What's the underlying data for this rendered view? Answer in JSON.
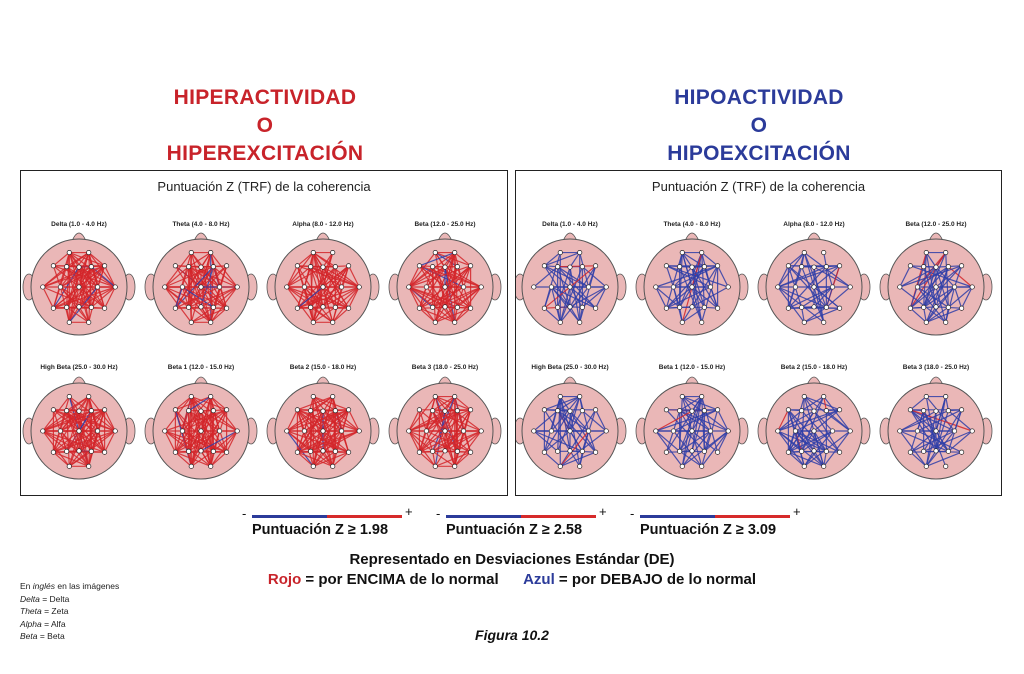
{
  "headings": {
    "left": [
      "HIPERACTIVIDAD",
      "O",
      "HIPEREXCITACIÓN"
    ],
    "right": [
      "HIPOACTIVIDAD",
      "O",
      "HIPOEXCITACIÓN"
    ]
  },
  "colors": {
    "red": "#c8232a",
    "blue": "#2b3b9a",
    "head": "#eab7b7",
    "line_red": "#d4262a",
    "line_blue": "#2f3ea8"
  },
  "panels": [
    {
      "id": "left",
      "title": "Puntuación Z (TRF) de la coherencia",
      "line_color": "red",
      "maps": [
        "Delta (1.0 - 4.0 Hz)",
        "Theta (4.0 - 8.0 Hz)",
        "Alpha (8.0 - 12.0 Hz)",
        "Beta (12.0 - 25.0 Hz)",
        "High Beta (25.0 - 30.0 Hz)",
        "Beta 1 (12.0 - 15.0 Hz)",
        "Beta 2 (15.0 - 18.0 Hz)",
        "Beta 3 (18.0 - 25.0 Hz)"
      ]
    },
    {
      "id": "right",
      "title": "Puntuación Z (TRF) de la coherencia",
      "line_color": "blue",
      "maps": [
        "Delta (1.0 - 4.0 Hz)",
        "Theta (4.0 - 8.0 Hz)",
        "Alpha (8.0 - 12.0 Hz)",
        "Beta (12.0 - 25.0 Hz)",
        "High Beta (25.0 - 30.0 Hz)",
        "Beta 1 (12.0 - 15.0 Hz)",
        "Beta 2 (15.0 - 18.0 Hz)",
        "Beta 3 (18.0 - 25.0 Hz)"
      ]
    }
  ],
  "scales": [
    {
      "minus": "-",
      "plus": "+",
      "label": "Puntuación Z ≥ 1.98"
    },
    {
      "minus": "-",
      "plus": "+",
      "label": "Puntuación Z ≥ 2.58"
    },
    {
      "minus": "-",
      "plus": "+",
      "label": "Puntuación Z ≥ 3.09"
    }
  ],
  "caption": "Representado en Desviaciones Estándar (DE)",
  "legend": {
    "red_word": "Rojo",
    "red_text": " = por ENCIMA de lo normal",
    "blue_word": "Azul",
    "blue_text": " = por DEBAJO de lo normal"
  },
  "glossary": {
    "intro_pre": "En ",
    "intro_em": "inglés",
    "intro_post": " en las imágenes",
    "items": [
      {
        "en": "Delta",
        "es": " = Delta"
      },
      {
        "en": "Theta",
        "es": " = Zeta"
      },
      {
        "en": "Alpha",
        "es": " = Alfa"
      },
      {
        "en": "Beta",
        "es": " = Beta"
      }
    ]
  },
  "figure": "Figura 10.2"
}
